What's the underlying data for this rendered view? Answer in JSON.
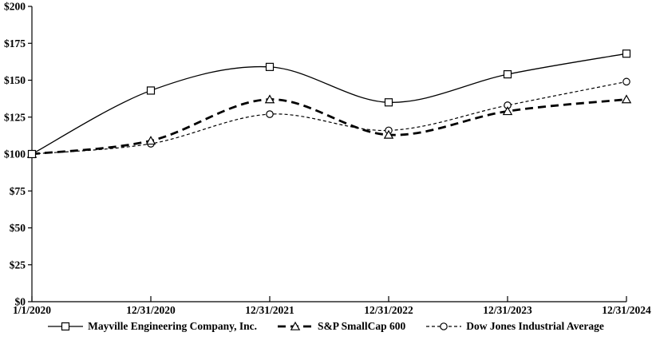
{
  "chart": {
    "background_color": "#ffffff",
    "axis_color": "#000000",
    "marker_fill": "#ffffff"
  },
  "chart_data": {
    "type": "line",
    "title": "",
    "xlabel": "",
    "ylabel": "",
    "ylim": [
      0,
      200
    ],
    "grid": false,
    "legend_position": "bottom",
    "categories": [
      "1/1/2020",
      "12/31/2020",
      "12/31/2021",
      "12/31/2022",
      "12/31/2023",
      "12/31/2024"
    ],
    "y_ticks": [
      {
        "value": 0,
        "label": "$0"
      },
      {
        "value": 25,
        "label": "$25"
      },
      {
        "value": 50,
        "label": "$50"
      },
      {
        "value": 75,
        "label": "$75"
      },
      {
        "value": 100,
        "label": "$100"
      },
      {
        "value": 125,
        "label": "$125"
      },
      {
        "value": 150,
        "label": "$150"
      },
      {
        "value": 175,
        "label": "$175"
      },
      {
        "value": 200,
        "label": "$200"
      }
    ],
    "series": [
      {
        "name": "Mayville Engineering Company, Inc.",
        "marker": "square",
        "line_style": "solid",
        "color": "#000000",
        "values": [
          100,
          143,
          159,
          135,
          154,
          168
        ]
      },
      {
        "name": "S&P SmallCap 600",
        "marker": "triangle",
        "line_style": "dashed-heavy",
        "color": "#000000",
        "values": [
          100,
          109,
          137,
          113,
          129,
          137
        ]
      },
      {
        "name": "Dow Jones Industrial Average",
        "marker": "circle",
        "line_style": "dashed-light",
        "color": "#000000",
        "values": [
          100,
          107,
          127,
          116,
          133,
          149
        ]
      }
    ]
  }
}
